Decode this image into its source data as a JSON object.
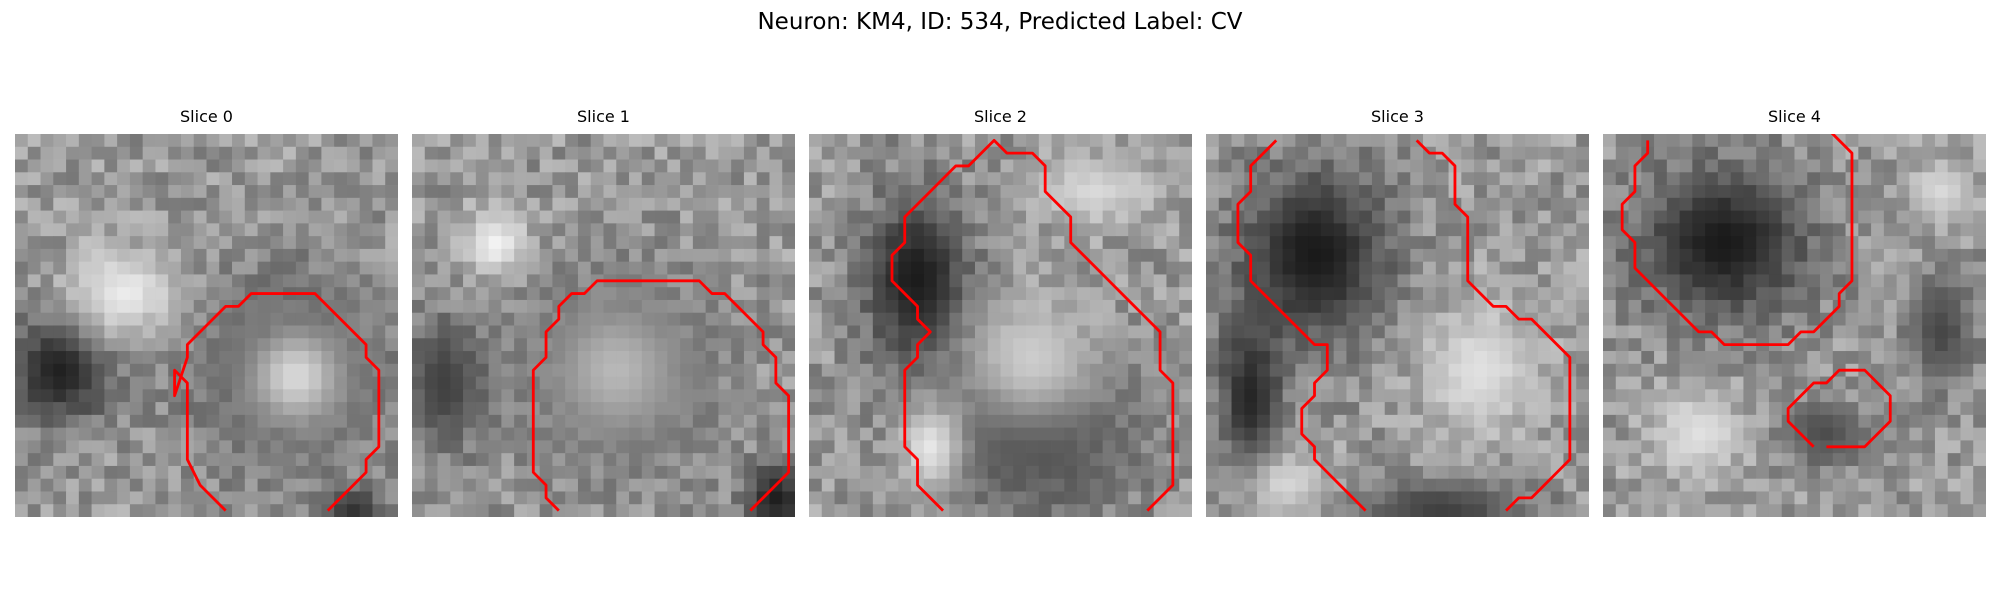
{
  "figure": {
    "title": "Neuron: KM4, ID: 534, Predicted Label: CV"
  },
  "contour_color": "#ff0000",
  "panels": [
    {
      "title": "Slice 0",
      "blobs": [
        {
          "cx": 3,
          "cy": 18,
          "rx": 5,
          "ry": 5,
          "v": 0.12
        },
        {
          "cx": 21,
          "cy": 18,
          "rx": 9,
          "ry": 9,
          "v": 0.3
        },
        {
          "cx": 21.5,
          "cy": 18.5,
          "rx": 4.5,
          "ry": 4.5,
          "v": 0.85
        },
        {
          "cx": 8,
          "cy": 12,
          "rx": 5,
          "ry": 4,
          "v": 0.92
        },
        {
          "cx": 26,
          "cy": 29,
          "rx": 3,
          "ry": 2,
          "v": 0.2
        }
      ],
      "contours": [
        [
          [
            16,
            29
          ],
          [
            14,
            27
          ],
          [
            13,
            25
          ],
          [
            13,
            19
          ],
          [
            12,
            18
          ],
          [
            12,
            20
          ],
          [
            13,
            17
          ],
          [
            13,
            16
          ],
          [
            14,
            15
          ],
          [
            15,
            14
          ],
          [
            16,
            13
          ],
          [
            17,
            13
          ],
          [
            18,
            12
          ],
          [
            23,
            12
          ],
          [
            24,
            13
          ],
          [
            25,
            14
          ],
          [
            26,
            15
          ],
          [
            27,
            16
          ],
          [
            27,
            17
          ],
          [
            28,
            18
          ],
          [
            28,
            24
          ],
          [
            27,
            25
          ],
          [
            27,
            26
          ],
          [
            26,
            27
          ],
          [
            24,
            29
          ]
        ]
      ]
    },
    {
      "title": "Slice 1",
      "blobs": [
        {
          "cx": 2,
          "cy": 19,
          "rx": 4,
          "ry": 6,
          "v": 0.25
        },
        {
          "cx": 15.5,
          "cy": 18,
          "rx": 9,
          "ry": 9,
          "v": 0.3
        },
        {
          "cx": 15.5,
          "cy": 18,
          "rx": 6.5,
          "ry": 6.5,
          "v": 0.72
        },
        {
          "cx": 6,
          "cy": 8,
          "rx": 3,
          "ry": 3,
          "v": 0.95
        },
        {
          "cx": 28,
          "cy": 28,
          "rx": 3,
          "ry": 3,
          "v": 0.12
        }
      ],
      "contours": [
        [
          [
            11,
            29
          ],
          [
            10,
            28
          ],
          [
            10,
            27
          ],
          [
            9,
            26
          ],
          [
            9,
            18
          ],
          [
            10,
            17
          ],
          [
            10,
            15
          ],
          [
            11,
            14
          ],
          [
            11,
            13
          ],
          [
            12,
            12
          ],
          [
            13,
            12
          ],
          [
            14,
            11
          ],
          [
            15,
            11
          ],
          [
            22,
            11
          ],
          [
            23,
            12
          ],
          [
            24,
            12
          ],
          [
            25,
            13
          ],
          [
            26,
            14
          ],
          [
            27,
            15
          ],
          [
            27,
            16
          ],
          [
            28,
            17
          ],
          [
            28,
            19
          ],
          [
            29,
            20
          ],
          [
            29,
            26
          ],
          [
            27,
            28
          ],
          [
            26,
            29
          ]
        ]
      ]
    },
    {
      "title": "Slice 2",
      "blobs": [
        {
          "cx": 8,
          "cy": 11,
          "rx": 5,
          "ry": 8,
          "v": 0.1
        },
        {
          "cx": 17,
          "cy": 23,
          "rx": 10,
          "ry": 8,
          "v": 0.28
        },
        {
          "cx": 17,
          "cy": 17,
          "rx": 6,
          "ry": 6,
          "v": 0.8
        },
        {
          "cx": 9,
          "cy": 24,
          "rx": 3,
          "ry": 4,
          "v": 0.9
        },
        {
          "cx": 22,
          "cy": 4,
          "rx": 5,
          "ry": 3,
          "v": 0.85
        }
      ],
      "contours": [
        [
          [
            10,
            29
          ],
          [
            9,
            28
          ],
          [
            8,
            27
          ],
          [
            8,
            25
          ],
          [
            7,
            24
          ],
          [
            7,
            18
          ],
          [
            8,
            17
          ],
          [
            8,
            16
          ],
          [
            9,
            15
          ],
          [
            8,
            14
          ],
          [
            8,
            13
          ],
          [
            7,
            12
          ],
          [
            6,
            11
          ],
          [
            6,
            9
          ],
          [
            7,
            8
          ],
          [
            7,
            6
          ],
          [
            8,
            5
          ],
          [
            9,
            4
          ],
          [
            10,
            3
          ],
          [
            11,
            2
          ],
          [
            12,
            2
          ],
          [
            13,
            1
          ],
          [
            14,
            0
          ],
          [
            15,
            1
          ],
          [
            16,
            1
          ],
          [
            17,
            1
          ],
          [
            18,
            2
          ],
          [
            18,
            4
          ],
          [
            19,
            5
          ],
          [
            20,
            6
          ],
          [
            20,
            8
          ],
          [
            21,
            9
          ],
          [
            22,
            10
          ],
          [
            23,
            11
          ],
          [
            24,
            12
          ],
          [
            25,
            13
          ],
          [
            26,
            14
          ],
          [
            27,
            15
          ],
          [
            27,
            18
          ],
          [
            28,
            19
          ],
          [
            28,
            27
          ],
          [
            27,
            28
          ],
          [
            26,
            29
          ]
        ]
      ]
    },
    {
      "title": "Slice 3",
      "blobs": [
        {
          "cx": 8,
          "cy": 9,
          "rx": 7,
          "ry": 8,
          "v": 0.1
        },
        {
          "cx": 3,
          "cy": 20,
          "rx": 3,
          "ry": 8,
          "v": 0.15
        },
        {
          "cx": 21,
          "cy": 18,
          "rx": 5,
          "ry": 6,
          "v": 0.88
        },
        {
          "cx": 6,
          "cy": 27,
          "rx": 4,
          "ry": 3,
          "v": 0.85
        },
        {
          "cx": 18,
          "cy": 29,
          "rx": 8,
          "ry": 3,
          "v": 0.25
        }
      ],
      "contours": [
        [
          [
            5,
            0
          ],
          [
            4,
            1
          ],
          [
            3,
            2
          ],
          [
            3,
            4
          ],
          [
            2,
            5
          ],
          [
            2,
            8
          ],
          [
            3,
            9
          ],
          [
            3,
            11
          ],
          [
            4,
            12
          ],
          [
            5,
            13
          ],
          [
            6,
            14
          ],
          [
            7,
            15
          ],
          [
            8,
            16
          ],
          [
            9,
            16
          ],
          [
            9,
            18
          ],
          [
            8,
            19
          ],
          [
            8,
            20
          ],
          [
            7,
            21
          ],
          [
            7,
            23
          ],
          [
            8,
            24
          ],
          [
            8,
            25
          ],
          [
            9,
            26
          ],
          [
            10,
            27
          ],
          [
            11,
            28
          ],
          [
            12,
            29
          ]
        ],
        [
          [
            16,
            0
          ],
          [
            17,
            1
          ],
          [
            18,
            1
          ],
          [
            19,
            2
          ],
          [
            19,
            5
          ],
          [
            20,
            6
          ],
          [
            20,
            11
          ],
          [
            21,
            12
          ],
          [
            22,
            13
          ],
          [
            23,
            13
          ],
          [
            24,
            14
          ],
          [
            25,
            14
          ],
          [
            26,
            15
          ],
          [
            27,
            16
          ],
          [
            28,
            17
          ],
          [
            28,
            25
          ],
          [
            27,
            26
          ],
          [
            26,
            27
          ],
          [
            25,
            28
          ],
          [
            24,
            28
          ],
          [
            23,
            29
          ]
        ]
      ]
    },
    {
      "title": "Slice 4",
      "blobs": [
        {
          "cx": 9,
          "cy": 8,
          "rx": 8,
          "ry": 7,
          "v": 0.1
        },
        {
          "cx": 17,
          "cy": 23,
          "rx": 4,
          "ry": 3,
          "v": 0.3
        },
        {
          "cx": 7,
          "cy": 23,
          "rx": 4,
          "ry": 4,
          "v": 0.88
        },
        {
          "cx": 26,
          "cy": 15,
          "rx": 3,
          "ry": 5,
          "v": 0.28
        },
        {
          "cx": 26,
          "cy": 4,
          "rx": 3,
          "ry": 3,
          "v": 0.85
        }
      ],
      "contours": [
        [
          [
            3,
            0
          ],
          [
            3,
            1
          ],
          [
            2,
            2
          ],
          [
            2,
            4
          ],
          [
            1,
            5
          ],
          [
            1,
            7
          ],
          [
            2,
            8
          ],
          [
            2,
            10
          ],
          [
            3,
            11
          ],
          [
            4,
            12
          ],
          [
            5,
            13
          ],
          [
            6,
            14
          ],
          [
            7,
            15
          ],
          [
            8,
            15
          ],
          [
            9,
            16
          ],
          [
            11,
            16
          ],
          [
            12,
            16
          ],
          [
            14,
            16
          ],
          [
            15,
            15
          ],
          [
            16,
            15
          ],
          [
            17,
            14
          ],
          [
            18,
            13
          ],
          [
            18,
            12
          ],
          [
            19,
            11
          ],
          [
            19,
            1
          ],
          [
            18,
            0
          ],
          [
            17,
            -1
          ]
        ],
        [
          [
            16,
            24
          ],
          [
            15,
            23
          ],
          [
            14,
            22
          ],
          [
            14,
            21
          ],
          [
            15,
            20
          ],
          [
            16,
            19
          ],
          [
            17,
            19
          ],
          [
            18,
            18
          ],
          [
            20,
            18
          ],
          [
            21,
            19
          ],
          [
            22,
            20
          ],
          [
            22,
            22
          ],
          [
            21,
            23
          ],
          [
            20,
            24
          ],
          [
            19,
            24
          ],
          [
            18,
            24
          ],
          [
            17,
            24
          ]
        ]
      ]
    }
  ]
}
